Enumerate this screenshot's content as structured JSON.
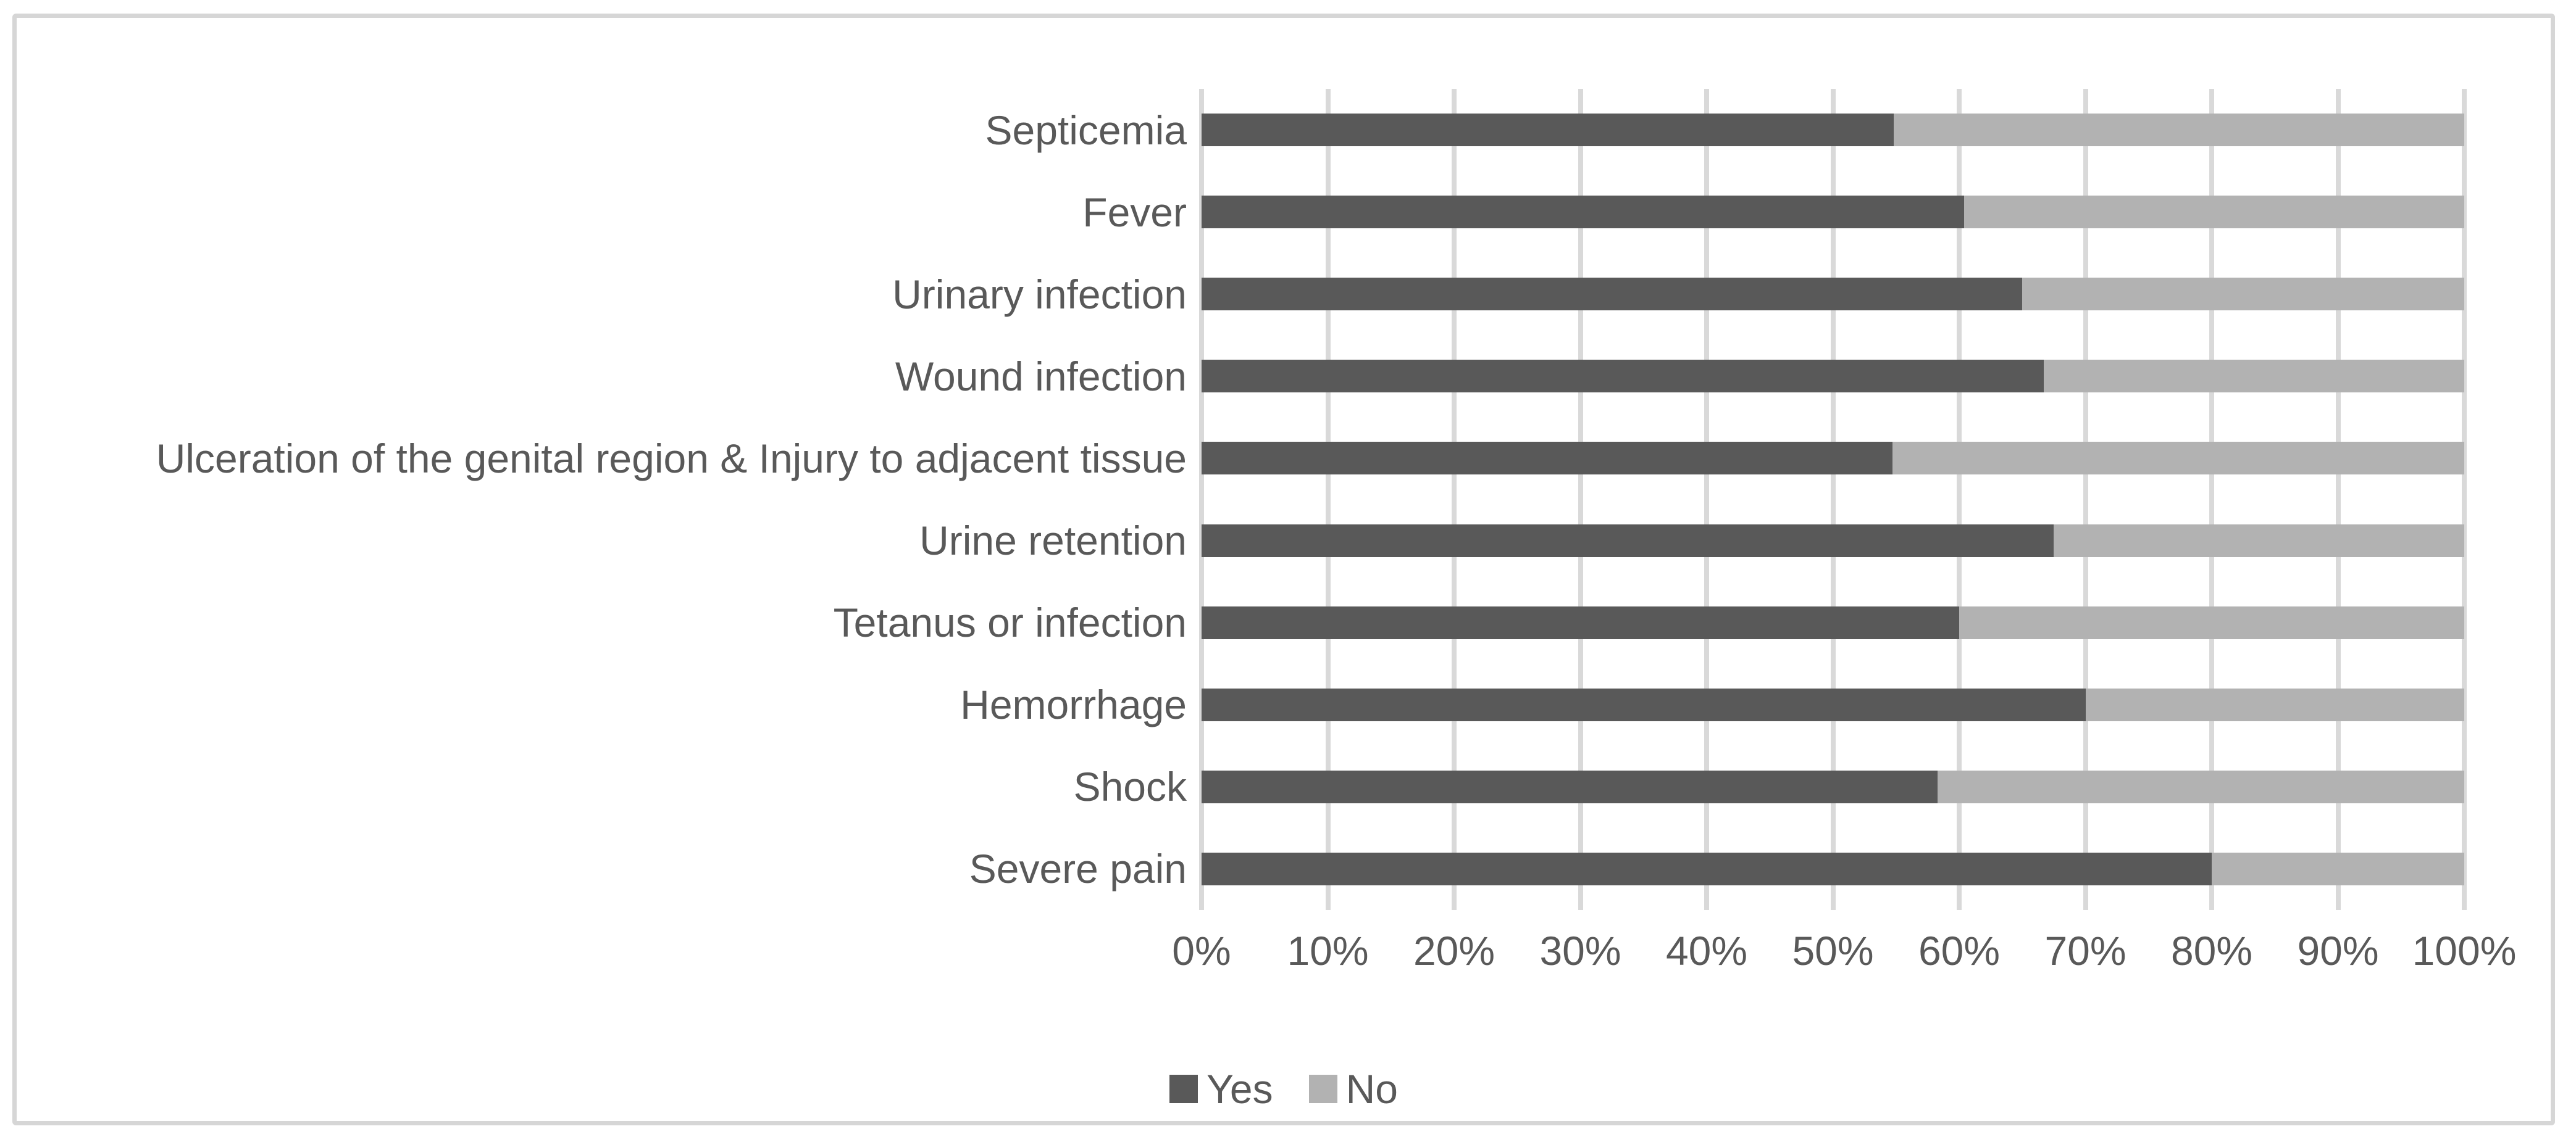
{
  "chart_data": {
    "type": "bar",
    "orientation": "horizontal",
    "stacked": true,
    "unit": "%",
    "title": "",
    "xlabel": "",
    "ylabel": "",
    "categories": [
      "Septicemia",
      "Fever",
      "Urinary infection",
      "Wound infection",
      "Ulceration of the genital region & Injury to adjacent tissue",
      "Urine retention",
      "Tetanus or infection",
      "Hemorrhage",
      "Shock",
      "Severe pain"
    ],
    "series": [
      {
        "name": "Yes",
        "color": "#595959",
        "values": [
          54.8,
          60.4,
          65.0,
          66.7,
          54.7,
          67.5,
          60.0,
          70.0,
          58.3,
          80.0
        ]
      },
      {
        "name": "No",
        "color": "#b2b2b2",
        "values": [
          45.2,
          39.6,
          35.0,
          33.3,
          45.3,
          32.5,
          40.0,
          30.0,
          41.7,
          20.0
        ]
      }
    ],
    "x_axis": {
      "min": 0,
      "max": 100,
      "tick_values": [
        0,
        10,
        20,
        30,
        40,
        50,
        60,
        70,
        80,
        90,
        100
      ],
      "tick_labels": [
        "0%",
        "10%",
        "20%",
        "30%",
        "40%",
        "50%",
        "60%",
        "70%",
        "80%",
        "90%",
        "100%"
      ]
    },
    "grid": true,
    "legend": {
      "position": "bottom",
      "entries": [
        "Yes",
        "No"
      ]
    },
    "colors": {
      "gridline": "#d9d9d9",
      "text": "#595959",
      "border": "#d6d6d6",
      "background": "#ffffff"
    }
  }
}
